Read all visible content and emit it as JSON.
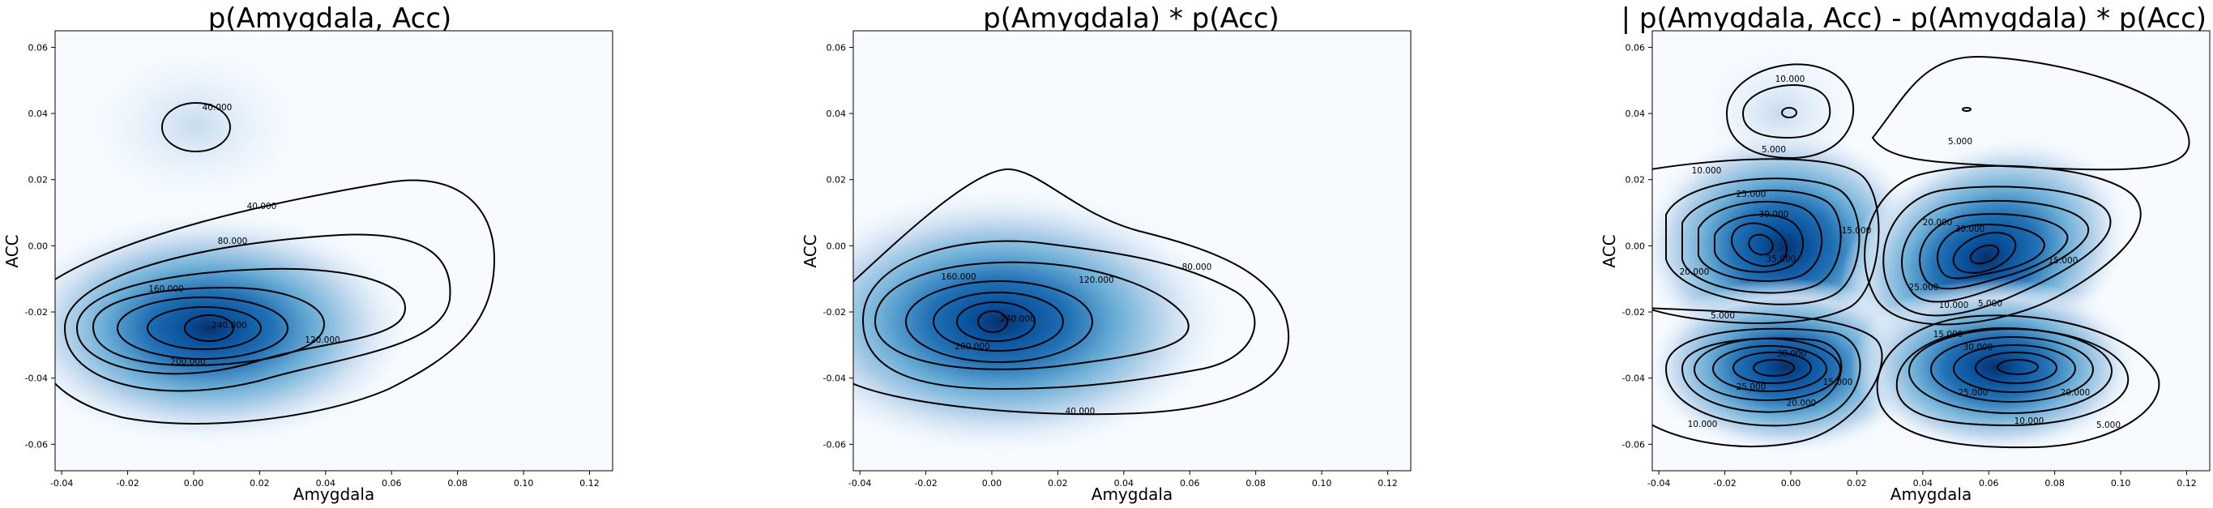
{
  "chart_data": [
    {
      "type": "heatmap",
      "title": "p(Amygdala, Acc)",
      "xlabel": "Amygdala",
      "ylabel": "ACC",
      "xlim": [
        -0.042,
        0.127
      ],
      "ylim": [
        -0.068,
        0.065
      ],
      "xticks": [
        "-0.04",
        "-0.02",
        "0.00",
        "0.02",
        "0.04",
        "0.06",
        "0.08",
        "0.10",
        "0.12"
      ],
      "yticks": [
        "0.06",
        "0.04",
        "0.02",
        "0.00",
        "-0.02",
        "-0.04",
        "-0.06"
      ],
      "contour_levels": [
        "40.000",
        "80.000",
        "120.000",
        "160.000",
        "200.000",
        "240.000"
      ],
      "colormap": "Blues",
      "density_peaks": [
        {
          "x": 0.003,
          "y": -0.025,
          "level": 240
        },
        {
          "x": 0.003,
          "y": 0.036,
          "level": 45
        }
      ]
    },
    {
      "type": "heatmap",
      "title": "p(Amygdala) * p(Acc)",
      "xlabel": "Amygdala",
      "ylabel": "ACC",
      "xlim": [
        -0.042,
        0.127
      ],
      "ylim": [
        -0.068,
        0.065
      ],
      "xticks": [
        "-0.04",
        "-0.02",
        "0.00",
        "0.02",
        "0.04",
        "0.06",
        "0.08",
        "0.10",
        "0.12"
      ],
      "yticks": [
        "0.06",
        "0.04",
        "0.02",
        "0.00",
        "-0.02",
        "-0.04",
        "-0.06"
      ],
      "contour_levels": [
        "40.000",
        "80.000",
        "120.000",
        "160.000",
        "200.000",
        "240.000"
      ],
      "colormap": "Blues",
      "density_peaks": [
        {
          "x": 0.004,
          "y": -0.023,
          "level": 240
        }
      ]
    },
    {
      "type": "heatmap",
      "title": "| p(Amygdala, Acc) - p(Amygdala) * p(Acc) |",
      "xlabel": "Amygdala",
      "ylabel": "ACC",
      "xlim": [
        -0.042,
        0.127
      ],
      "ylim": [
        -0.068,
        0.065
      ],
      "xticks": [
        "-0.04",
        "-0.02",
        "0.00",
        "0.02",
        "0.04",
        "0.06",
        "0.08",
        "0.10",
        "0.12"
      ],
      "yticks": [
        "0.06",
        "0.04",
        "0.02",
        "0.00",
        "-0.02",
        "-0.04",
        "-0.06"
      ],
      "contour_levels": [
        "5.000",
        "10.000",
        "15.000",
        "20.000",
        "25.000",
        "30.000",
        "35.000"
      ],
      "colormap": "Blues",
      "density_peaks": [
        {
          "x": -0.011,
          "y": 0.0,
          "level": 36
        },
        {
          "x": 0.052,
          "y": -0.005,
          "level": 34
        },
        {
          "x": -0.01,
          "y": -0.036,
          "level": 34
        },
        {
          "x": 0.058,
          "y": -0.036,
          "level": 34
        },
        {
          "x": 0.0,
          "y": 0.04,
          "level": 11
        },
        {
          "x": 0.056,
          "y": 0.041,
          "level": 6
        }
      ]
    }
  ]
}
